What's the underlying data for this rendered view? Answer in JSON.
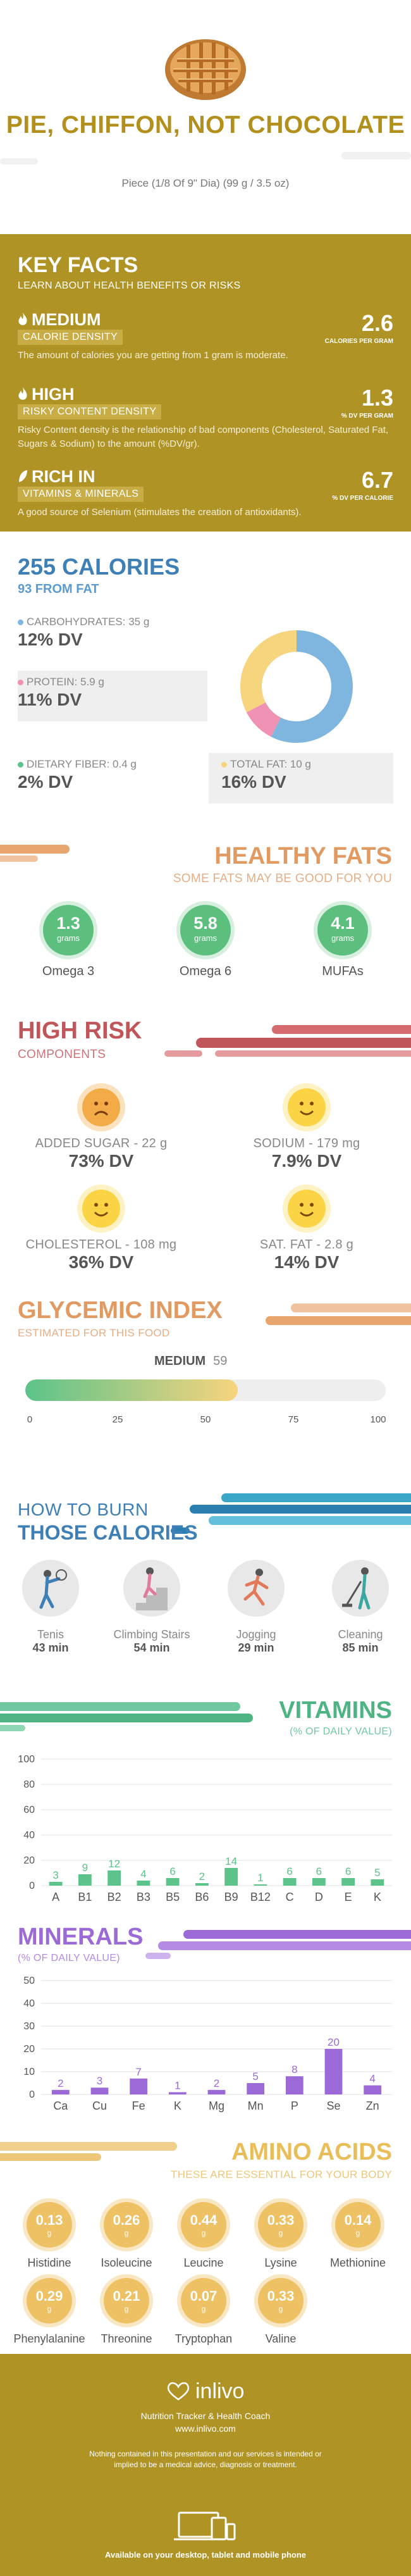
{
  "header": {
    "title": "PIE, CHIFFON, NOT CHOCOLATE",
    "serving": "Piece (1/8 Of 9\" Dia) (99 g / 3.5 oz)"
  },
  "key_facts": {
    "title": "KEY FACTS",
    "subtitle": "LEARN ABOUT HEALTH BENEFITS OR RISKS",
    "items": [
      {
        "level": "MEDIUM",
        "band": "CALORIE DENSITY",
        "value": "2.6",
        "unit": "CALORIES PER GRAM",
        "desc": "The amount of calories you are getting from 1 gram is moderate."
      },
      {
        "level": "HIGH",
        "band": "RISKY CONTENT DENSITY",
        "value": "1.3",
        "unit": "% DV PER GRAM",
        "desc": "Risky Content density is the relationship of bad components (Cholesterol, Saturated Fat, Sugars & Sodium) to the amount (%DV/gr)."
      },
      {
        "level": "RICH IN",
        "band": "VITAMINS & MINERALS",
        "value": "6.7",
        "unit": "% DV PER CALORIE",
        "desc": "A good source of Selenium (stimulates the creation of antioxidants)."
      }
    ]
  },
  "calories": {
    "title": "255 CALORIES",
    "from_fat": "93 FROM FAT",
    "nutrients": [
      {
        "label": "CARBOHYDRATES: 35 g",
        "dv": "12% DV",
        "color": "#7fb6e0"
      },
      {
        "label": "PROTEIN: 5.9 g",
        "dv": "11% DV",
        "color": "#ef92b3"
      },
      {
        "label": "DIETARY FIBER: 0.4 g",
        "dv": "2% DV",
        "color": "#5cc38a"
      },
      {
        "label": "TOTAL FAT: 10 g",
        "dv": "16% DV",
        "color": "#f7d47e"
      }
    ]
  },
  "healthy_fats": {
    "title": "HEALTHY FATS",
    "subtitle": "SOME FATS MAY BE GOOD FOR YOU",
    "unit": "grams",
    "items": [
      {
        "value": "1.3",
        "name": "Omega 3"
      },
      {
        "value": "5.8",
        "name": "Omega 6"
      },
      {
        "value": "4.1",
        "name": "MUFAs"
      }
    ]
  },
  "high_risk": {
    "title": "HIGH RISK",
    "subtitle": "COMPONENTS",
    "items": [
      {
        "label": "ADDED SUGAR - 22 g",
        "dv": "73% DV",
        "mood": "sad"
      },
      {
        "label": "SODIUM - 179 mg",
        "dv": "7.9% DV",
        "mood": "happy"
      },
      {
        "label": "CHOLESTEROL - 108 mg",
        "dv": "36% DV",
        "mood": "happy"
      },
      {
        "label": "SAT. FAT - 2.8 g",
        "dv": "14% DV",
        "mood": "happy"
      }
    ]
  },
  "glycemic": {
    "title": "GLYCEMIC INDEX",
    "subtitle": "ESTIMATED FOR THIS FOOD",
    "level": "MEDIUM",
    "value": 59,
    "value_text": "59",
    "ticks": [
      "0",
      "25",
      "50",
      "75",
      "100"
    ]
  },
  "burn": {
    "title_line1": "HOW TO BURN",
    "title_line2": "THOSE CALORIES",
    "items": [
      {
        "name": "Tenis",
        "minutes": "43 min"
      },
      {
        "name": "Climbing Stairs",
        "minutes": "54 min"
      },
      {
        "name": "Jogging",
        "minutes": "29 min"
      },
      {
        "name": "Cleaning",
        "minutes": "85 min"
      }
    ]
  },
  "chart_data": [
    {
      "type": "bar",
      "title": "VITAMINS",
      "subtitle": "(% OF DAILY VALUE)",
      "categories": [
        "A",
        "B1",
        "B2",
        "B3",
        "B5",
        "B6",
        "B9",
        "B12",
        "C",
        "D",
        "E",
        "K"
      ],
      "values": [
        3,
        9,
        12,
        4,
        6,
        2,
        14,
        1,
        6,
        6,
        6,
        5
      ],
      "ylim": [
        0,
        100
      ],
      "yticks": [
        "0",
        "20",
        "40",
        "60",
        "80",
        "100"
      ],
      "color": "#5cc38a"
    },
    {
      "type": "bar",
      "title": "MINERALS",
      "subtitle": "(% OF DAILY VALUE)",
      "categories": [
        "Ca",
        "Cu",
        "Fe",
        "K",
        "Mg",
        "Mn",
        "P",
        "Se",
        "Zn"
      ],
      "values": [
        2,
        3,
        7,
        1,
        2,
        5,
        8,
        20,
        4
      ],
      "ylim": [
        0,
        50
      ],
      "yticks": [
        "0",
        "10",
        "20",
        "30",
        "40",
        "50"
      ],
      "color": "#9b6ad6"
    }
  ],
  "amino": {
    "title": "AMINO ACIDS",
    "subtitle": "THESE ARE ESSENTIAL FOR YOUR BODY",
    "unit": "g",
    "items": [
      {
        "value": "0.13",
        "name": "Histidine"
      },
      {
        "value": "0.26",
        "name": "Isoleucine"
      },
      {
        "value": "0.44",
        "name": "Leucine"
      },
      {
        "value": "0.33",
        "name": "Lysine"
      },
      {
        "value": "0.14",
        "name": "Methionine"
      },
      {
        "value": "0.29",
        "name": "Phenylalanine"
      },
      {
        "value": "0.21",
        "name": "Threonine"
      },
      {
        "value": "0.07",
        "name": "Tryptophan"
      },
      {
        "value": "0.33",
        "name": "Valine"
      }
    ]
  },
  "footer": {
    "brand": "inlivo",
    "tagline": "Nutrition Tracker & Health Coach",
    "url": "www.inlivo.com",
    "disclaimer": "Nothing contained in this presentation and our services is intended or implied to be a medical advice, diagnosis or treatment.",
    "available": "Available on your desktop, tablet and mobile phone"
  }
}
